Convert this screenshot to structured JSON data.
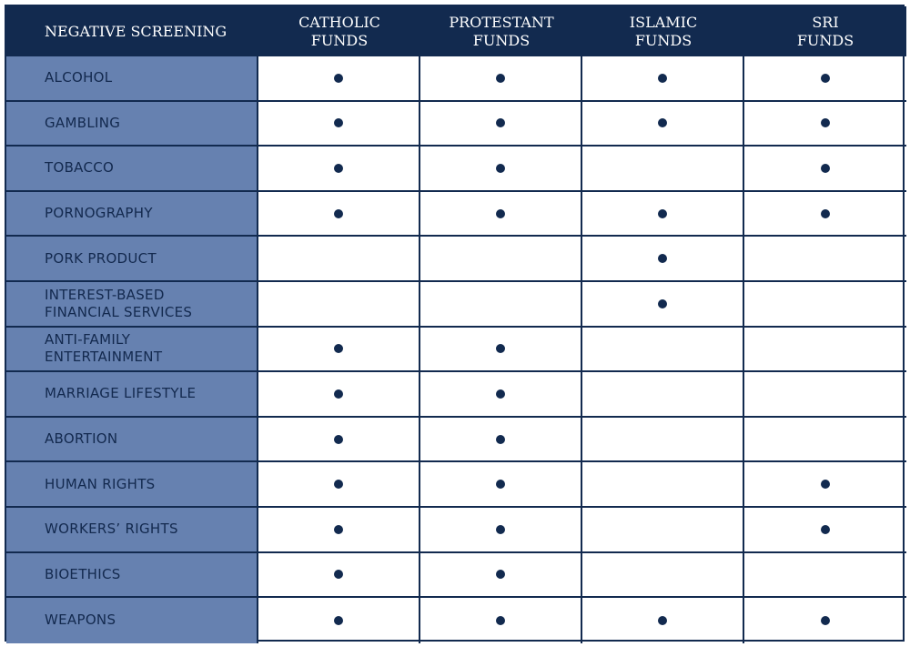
{
  "table": {
    "headers": [
      "NEGATIVE SCREENING",
      "CATHOLIC\nFUNDS",
      "PROTESTANT\nFUNDS",
      "ISLAMIC\nFUNDS",
      "SRI\nFUNDS"
    ],
    "rows": [
      {
        "label": "ALCOHOL",
        "marks": [
          true,
          true,
          true,
          true
        ]
      },
      {
        "label": "GAMBLING",
        "marks": [
          true,
          true,
          true,
          true
        ]
      },
      {
        "label": "TOBACCO",
        "marks": [
          true,
          true,
          false,
          true
        ]
      },
      {
        "label": "PORNOGRAPHY",
        "marks": [
          true,
          true,
          true,
          true
        ]
      },
      {
        "label": "PORK PRODUCT",
        "marks": [
          false,
          false,
          true,
          false
        ]
      },
      {
        "label": "INTEREST-BASED\nFINANCIAL SERVICES",
        "marks": [
          false,
          false,
          true,
          false
        ]
      },
      {
        "label": "ANTI-FAMILY\nENTERTAINMENT",
        "marks": [
          true,
          true,
          false,
          false
        ]
      },
      {
        "label": "MARRIAGE LIFESTYLE",
        "marks": [
          true,
          true,
          false,
          false
        ]
      },
      {
        "label": "ABORTION",
        "marks": [
          true,
          true,
          false,
          false
        ]
      },
      {
        "label": "HUMAN RIGHTS",
        "marks": [
          true,
          true,
          false,
          true
        ]
      },
      {
        "label": "WORKERS’ RIGHTS",
        "marks": [
          true,
          true,
          false,
          true
        ]
      },
      {
        "label": "BIOETHICS",
        "marks": [
          true,
          true,
          false,
          false
        ]
      },
      {
        "label": "WEAPONS",
        "marks": [
          true,
          true,
          true,
          true
        ]
      }
    ]
  },
  "colors": {
    "header_bg": "#122a4f",
    "label_bg": "#6681b0",
    "dot": "#122a4f"
  }
}
